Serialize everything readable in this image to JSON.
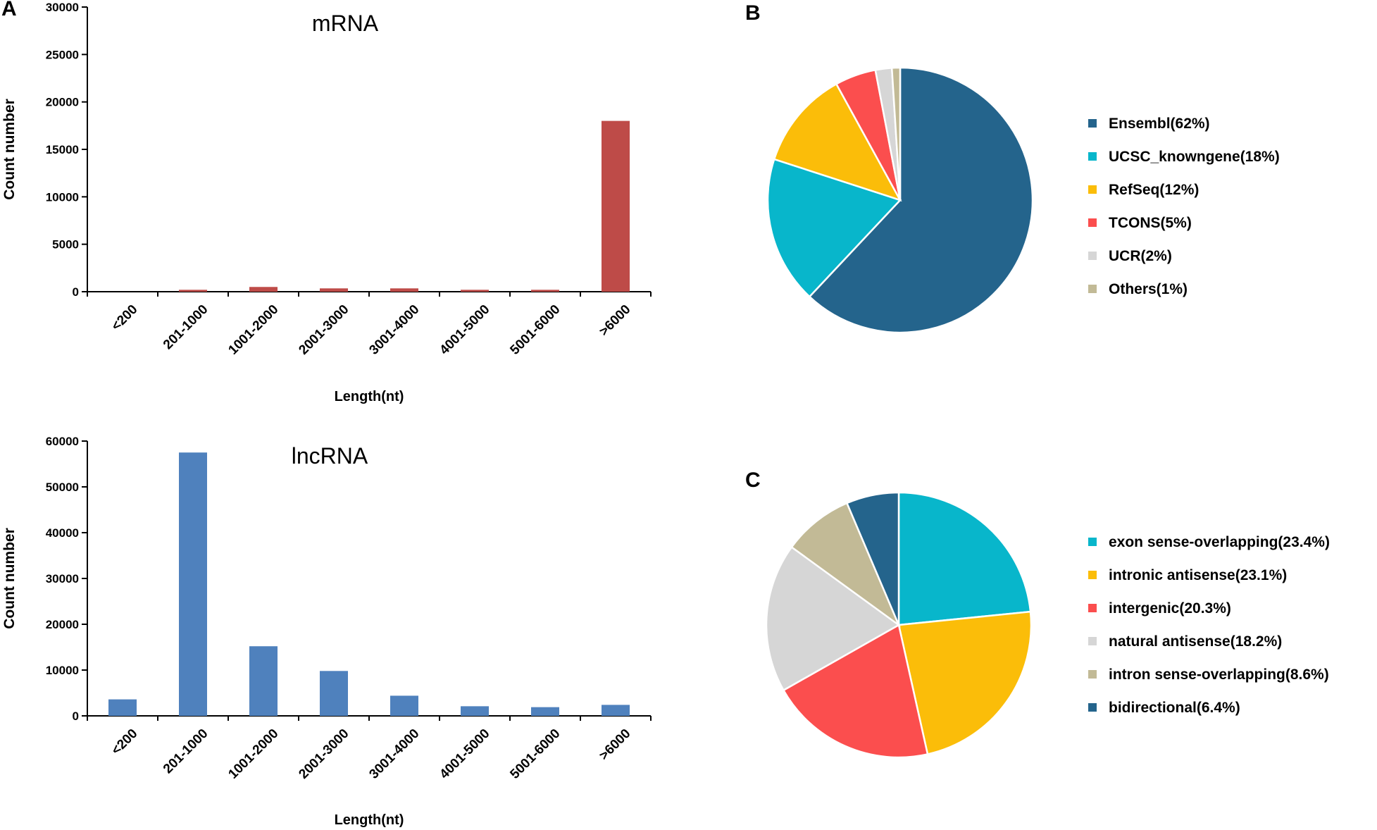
{
  "panels": {
    "a": "A",
    "b": "B",
    "c": "C"
  },
  "chart_data": [
    {
      "id": "mrna",
      "type": "bar",
      "title": "mRNA",
      "xlabel": "Length(nt)",
      "ylabel": "Count number",
      "categories": [
        "<200",
        "201-1000",
        "1001-2000",
        "2001-3000",
        "3001-4000",
        "4001-5000",
        "5001-6000",
        ">6000"
      ],
      "values": [
        0,
        200,
        500,
        350,
        350,
        200,
        200,
        18000
      ],
      "ylim": [
        0,
        30000
      ],
      "yticks": [
        0,
        5000,
        10000,
        15000,
        20000,
        25000,
        30000
      ],
      "color": "#be4b48"
    },
    {
      "id": "lncrna",
      "type": "bar",
      "title": "lncRNA",
      "xlabel": "Length(nt)",
      "ylabel": "Count number",
      "categories": [
        "<200",
        "201-1000",
        "1001-2000",
        "2001-3000",
        "3001-4000",
        "4001-5000",
        "5001-6000",
        ">6000"
      ],
      "values": [
        3600,
        57500,
        15200,
        9800,
        4400,
        2100,
        1900,
        2400
      ],
      "ylim": [
        0,
        60000
      ],
      "yticks": [
        0,
        10000,
        20000,
        30000,
        40000,
        50000,
        60000
      ],
      "color": "#4f81bd"
    },
    {
      "id": "sources",
      "type": "pie",
      "slices": [
        {
          "label": "Ensembl(62%)",
          "value": 62,
          "color": "#24648c"
        },
        {
          "label": "UCSC_knowngene(18%)",
          "value": 18,
          "color": "#08b6cb"
        },
        {
          "label": "RefSeq(12%)",
          "value": 12,
          "color": "#fbbd09"
        },
        {
          "label": "TCONS(5%)",
          "value": 5,
          "color": "#fb4e4e"
        },
        {
          "label": "UCR(2%)",
          "value": 2,
          "color": "#d6d6d6"
        },
        {
          "label": "Others(1%)",
          "value": 1,
          "color": "#c2ba96"
        }
      ]
    },
    {
      "id": "lncrna-classes",
      "type": "pie",
      "slices": [
        {
          "label": "exon sense-overlapping(23.4%)",
          "value": 23.4,
          "color": "#08b6cb"
        },
        {
          "label": "intronic antisense(23.1%)",
          "value": 23.1,
          "color": "#fbbd09"
        },
        {
          "label": "intergenic(20.3%)",
          "value": 20.3,
          "color": "#fb4e4e"
        },
        {
          "label": "natural antisense(18.2%)",
          "value": 18.2,
          "color": "#d6d6d6"
        },
        {
          "label": "intron sense-overlapping(8.6%)",
          "value": 8.6,
          "color": "#c2ba96"
        },
        {
          "label": "bidirectional(6.4%)",
          "value": 6.4,
          "color": "#24648c"
        }
      ]
    }
  ]
}
